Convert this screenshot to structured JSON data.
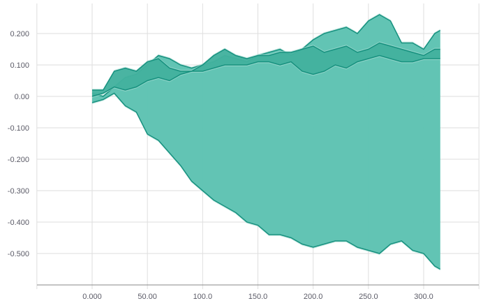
{
  "chart_data": {
    "type": "area",
    "title": "",
    "xlabel": "",
    "ylabel": "",
    "xlim": [
      -50,
      350
    ],
    "ylim": [
      -0.6,
      0.3
    ],
    "grid": true,
    "legend": "none",
    "x_ticks": [
      0,
      50,
      100,
      150,
      200,
      250,
      300
    ],
    "x_tick_labels": [
      "0.000",
      "50.00",
      "100.0",
      "150.0",
      "200.0",
      "250.0",
      "300.0"
    ],
    "y_ticks": [
      0.2,
      0.1,
      0.0,
      -0.1,
      -0.2,
      -0.3,
      -0.4,
      -0.5
    ],
    "y_tick_labels": [
      "0.200",
      "0.100",
      "0.00",
      "-0.100",
      "-0.200",
      "-0.300",
      "-0.400",
      "-0.500"
    ],
    "colors": {
      "fill": "#5cc2b1",
      "fill_light": "#a8ddd3",
      "fill_mid": "#3cae9a",
      "line": "#17917f"
    },
    "series": [
      {
        "x": [
          0,
          10,
          20,
          30,
          40,
          50,
          60,
          70,
          80,
          90,
          100,
          110,
          120,
          130,
          140,
          150,
          160,
          170,
          180,
          190,
          200,
          210,
          220,
          230,
          240,
          250,
          260,
          270,
          280,
          290,
          300,
          310,
          315
        ],
        "lower": [
          -0.02,
          -0.01,
          0.01,
          -0.03,
          -0.05,
          -0.12,
          -0.14,
          -0.18,
          -0.22,
          -0.27,
          -0.3,
          -0.33,
          -0.35,
          -0.37,
          -0.4,
          -0.41,
          -0.44,
          -0.44,
          -0.45,
          -0.47,
          -0.48,
          -0.47,
          -0.46,
          -0.46,
          -0.48,
          -0.49,
          -0.5,
          -0.47,
          -0.46,
          -0.49,
          -0.5,
          -0.54,
          -0.55
        ],
        "upper": [
          0.01,
          0.0,
          0.03,
          0.06,
          0.07,
          0.1,
          0.13,
          0.12,
          0.1,
          0.09,
          0.1,
          0.11,
          0.13,
          0.12,
          0.11,
          0.13,
          0.14,
          0.15,
          0.13,
          0.15,
          0.18,
          0.2,
          0.21,
          0.22,
          0.2,
          0.24,
          0.26,
          0.24,
          0.17,
          0.17,
          0.15,
          0.2,
          0.21
        ]
      },
      {
        "x": [
          0,
          10,
          20,
          30,
          40,
          50,
          60,
          70,
          80,
          90,
          100,
          110,
          120,
          130,
          140,
          150,
          160,
          170,
          180,
          190,
          200,
          210,
          220,
          230,
          240,
          250,
          260,
          270,
          280,
          290,
          300,
          310,
          315
        ],
        "lower": [
          0.0,
          0.01,
          0.03,
          0.02,
          0.03,
          0.05,
          0.06,
          0.05,
          0.07,
          0.08,
          0.08,
          0.09,
          0.1,
          0.1,
          0.1,
          0.11,
          0.11,
          0.1,
          0.11,
          0.08,
          0.07,
          0.08,
          0.1,
          0.09,
          0.11,
          0.12,
          0.13,
          0.12,
          0.11,
          0.11,
          0.12,
          0.12,
          0.12
        ],
        "upper": [
          0.02,
          0.02,
          0.08,
          0.09,
          0.08,
          0.11,
          0.12,
          0.09,
          0.08,
          0.08,
          0.1,
          0.13,
          0.15,
          0.13,
          0.12,
          0.13,
          0.13,
          0.14,
          0.14,
          0.15,
          0.16,
          0.14,
          0.15,
          0.16,
          0.14,
          0.15,
          0.17,
          0.16,
          0.15,
          0.14,
          0.13,
          0.15,
          0.15
        ]
      }
    ]
  }
}
